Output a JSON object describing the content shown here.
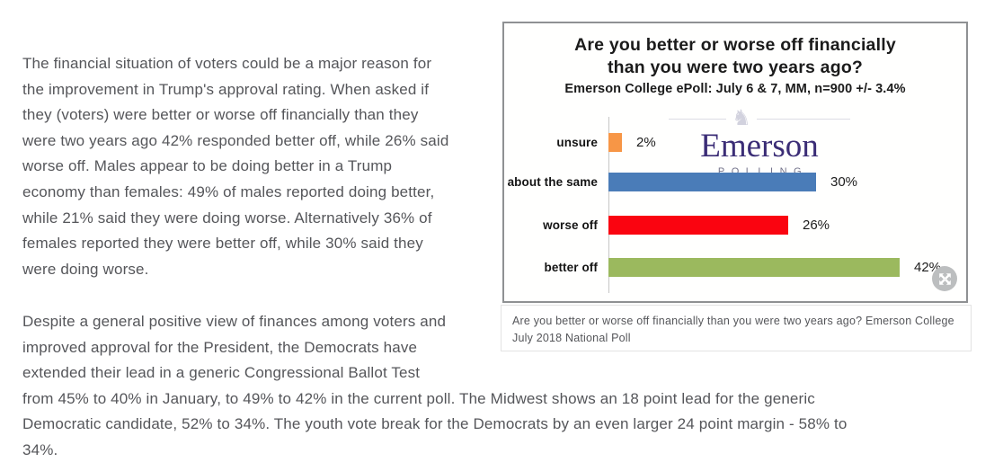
{
  "article": {
    "p1_lines": [
      "The financial situation of voters could be a major reason for",
      "the improvement in Trump's approval rating. When asked if",
      "they (voters) were better or worse off financially than they",
      "were two years ago 42% responded better off, while 26% said",
      "worse off. Males appear to be doing better in a Trump",
      "economy than females: 49% of males reported doing better,",
      "while 21% said they were doing worse. Alternatively 36% of",
      "females reported they were better off, while 30% said they",
      "were doing worse."
    ],
    "p2_lines": [
      "Despite a general positive view of finances among voters and",
      "improved approval for the President, the Democrats have",
      "extended their lead in a generic Congressional Ballot Test",
      "from 45% to 40% in January, to 49% to 42% in the current poll. The Midwest shows an 18 point lead for the generic",
      "Democratic candidate, 52% to 34%. The youth vote break for the Democrats by an even larger 24 point margin - 58% to",
      "34%."
    ]
  },
  "figure": {
    "caption": "Are you better or worse off financially than you were two years ago? Emerson College July 2018 National Poll"
  },
  "chart_data": {
    "type": "bar",
    "orientation": "horizontal",
    "title": "Are you better or worse off financially than you were two years ago?",
    "title_lines": [
      "Are you better or worse off financially",
      "than you were two years ago?"
    ],
    "subtitle": "Emerson College ePoll: July 6 & 7, MM, n=900 +/- 3.4%",
    "categories": [
      "unsure",
      "about the same",
      "worse off",
      "better off"
    ],
    "values": [
      2,
      30,
      26,
      42
    ],
    "value_labels": [
      "2%",
      "30%",
      "26%",
      "42%"
    ],
    "bar_colors": [
      "#F79646",
      "#4A7CB8",
      "#FA0410",
      "#9BB95E"
    ],
    "xlim": [
      0,
      45
    ],
    "grid": false,
    "legend": "none",
    "logo": {
      "text": "Emerson",
      "subtext": "POLLING"
    }
  }
}
